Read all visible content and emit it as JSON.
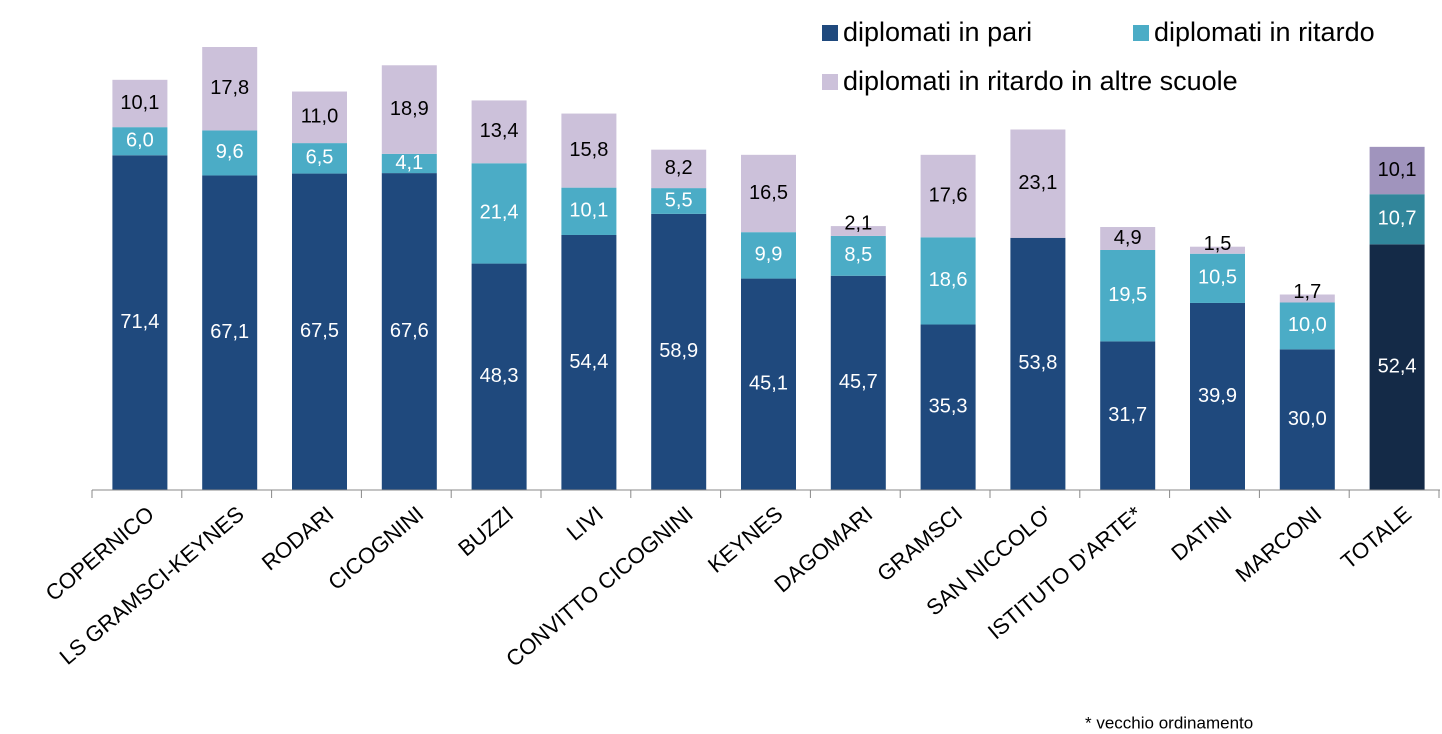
{
  "chart_data": {
    "type": "stacked_bar",
    "categories": [
      "COPERNICO",
      "LS GRAMSCI-KEYNES",
      "RODARI",
      "CICOGNINI",
      "BUZZI",
      "LIVI",
      "CONVITTO CICOGNINI",
      "KEYNES",
      "DAGOMARI",
      "GRAMSCI",
      "SAN NICCOLO'",
      "ISTITUTO D'ARTE*",
      "DATINI",
      "MARCONI",
      "TOTALE"
    ],
    "series": [
      {
        "name": "diplomati in pari",
        "color": "#1f497d",
        "highlight_color": "#142a47",
        "label_color": "#ffffff",
        "values": [
          71.4,
          67.1,
          67.5,
          67.6,
          48.3,
          54.4,
          58.9,
          45.1,
          45.7,
          35.3,
          53.8,
          31.7,
          39.9,
          30.0,
          52.4
        ],
        "value_labels": [
          "71,4",
          "67,1",
          "67,5",
          "67,6",
          "48,3",
          "54,4",
          "58,9",
          "45,1",
          "45,7",
          "35,3",
          "53,8",
          "31,7",
          "39,9",
          "30,0",
          "52,4"
        ]
      },
      {
        "name": "diplomati in ritardo",
        "color": "#4bacc6",
        "highlight_color": "#31869b",
        "label_color": "#ffffff",
        "values": [
          6.0,
          9.6,
          6.5,
          4.1,
          21.4,
          10.1,
          5.5,
          9.9,
          8.5,
          18.6,
          null,
          19.5,
          10.5,
          10.0,
          10.7
        ],
        "value_labels": [
          "6,0",
          "9,6",
          "6,5",
          "4,1",
          "21,4",
          "10,1",
          "5,5",
          "9,9",
          "8,5",
          "18,6",
          null,
          "19,5",
          "10,5",
          "10,0",
          "10,7"
        ]
      },
      {
        "name": "diplomati in ritardo in altre scuole",
        "color": "#ccc1da",
        "highlight_color": "#a094bd",
        "label_color": "#000000",
        "values": [
          10.1,
          17.8,
          11.0,
          18.9,
          13.4,
          15.8,
          8.2,
          16.5,
          2.1,
          17.6,
          23.1,
          4.9,
          1.5,
          1.7,
          10.1
        ],
        "value_labels": [
          "10,1",
          "17,8",
          "11,0",
          "18,9",
          "13,4",
          "15,8",
          "8,2",
          "16,5",
          "2,1",
          "17,6",
          "23,1",
          "4,9",
          "1,5",
          "1,7",
          "10,1"
        ]
      }
    ],
    "highlight": "TOTALE",
    "legend": "top-right",
    "annotations": [
      "* vecchio ordinamento"
    ]
  }
}
